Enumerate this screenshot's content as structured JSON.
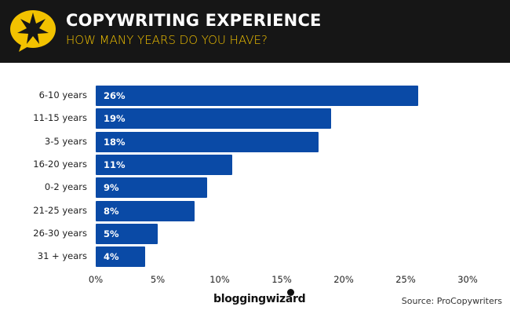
{
  "header": {
    "title": "COPYWRITING EXPERIENCE",
    "subtitle": "HOW MANY YEARS DO YOU HAVE?",
    "icon": "star-speech-bubble-icon",
    "accent_color": "#f2c200",
    "background_color": "#161616"
  },
  "chart_data": {
    "type": "bar",
    "orientation": "horizontal",
    "title": "Copywriting Experience",
    "subtitle": "How many years do you have?",
    "categories": [
      "6-10 years",
      "11-15 years",
      "3-5 years",
      "16-20 years",
      "0-2 years",
      "21-25 years",
      "26-30 years",
      "31 + years"
    ],
    "values": [
      26,
      19,
      18,
      11,
      9,
      8,
      5,
      4
    ],
    "value_labels": [
      "26%",
      "19%",
      "18%",
      "11%",
      "9%",
      "8%",
      "5%",
      "4%"
    ],
    "xlabel": "",
    "ylabel": "",
    "xlim": [
      0,
      30
    ],
    "x_ticks": [
      "0%",
      "5%",
      "10%",
      "15%",
      "20%",
      "25%",
      "30%"
    ],
    "grid": false,
    "bar_color": "#0a4aa6",
    "legend": null
  },
  "footer": {
    "brand": "bloggingwizard",
    "source": "Source: ProCopywriters"
  }
}
